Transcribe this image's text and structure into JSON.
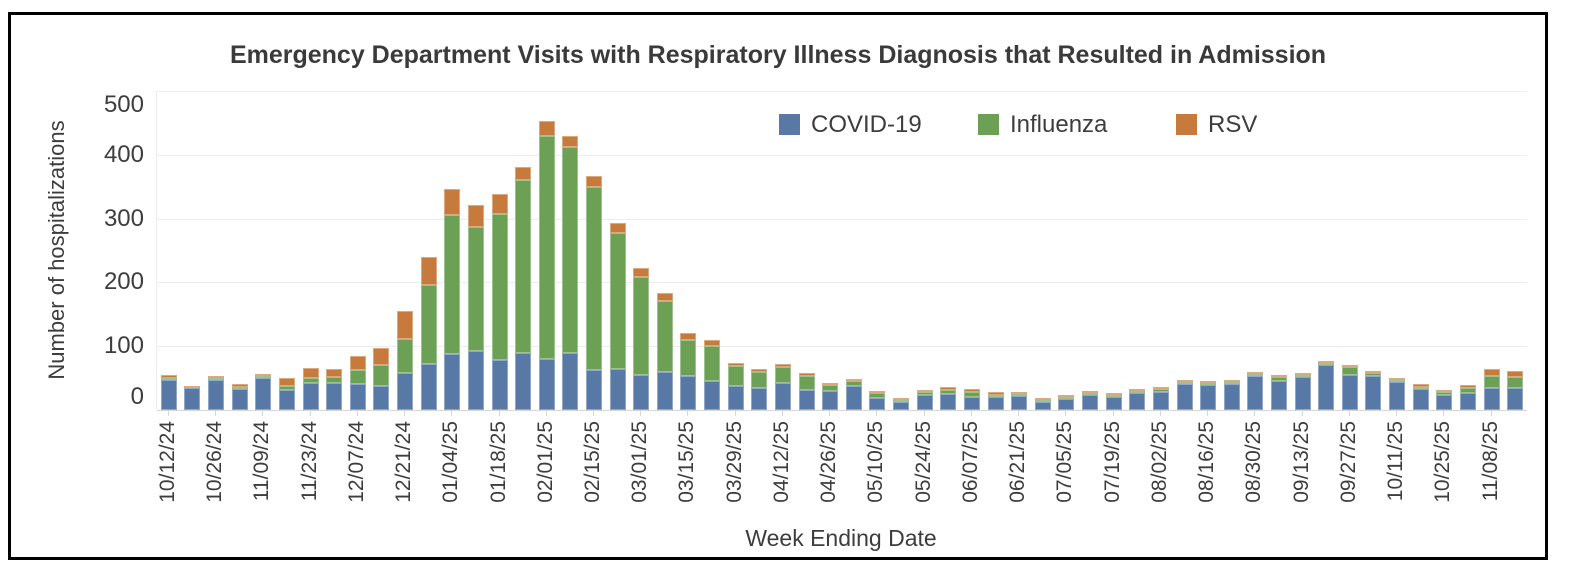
{
  "title": "Emergency Department Visits with Respiratory Illness Diagnosis that Resulted in Admission",
  "y_axis": {
    "title": "Number of hospitalizations"
  },
  "x_axis": {
    "title": "Week Ending Date",
    "label_every": 2
  },
  "colors": {
    "covid": "#5878A6",
    "influenza": "#6BA055",
    "rsv": "#C67B3C",
    "gridline": "#ECECEC",
    "axis_line": "#D7D7D7",
    "text": "#3D3D3D",
    "frame_border": "#000000",
    "background": "#FFFFFF"
  },
  "chart_data": {
    "type": "bar",
    "stacked": true,
    "title": "Emergency Department Visits with Respiratory Illness Diagnosis that Resulted in Admission",
    "xlabel": "Week Ending Date",
    "ylabel": "Number of hospitalizations",
    "ylim": [
      0,
      500
    ],
    "y_ticks": [
      0,
      100,
      200,
      300,
      400,
      500
    ],
    "grid": true,
    "legend_position": "top",
    "categories": [
      "10/12/24",
      "10/19/24",
      "10/26/24",
      "11/02/24",
      "11/09/24",
      "11/16/24",
      "11/23/24",
      "11/30/24",
      "12/07/24",
      "12/14/24",
      "12/21/24",
      "12/28/24",
      "01/04/25",
      "01/11/25",
      "01/18/25",
      "01/25/25",
      "02/01/25",
      "02/08/25",
      "02/15/25",
      "02/22/25",
      "03/01/25",
      "03/08/25",
      "03/15/25",
      "03/22/25",
      "03/29/25",
      "04/05/25",
      "04/12/25",
      "04/19/25",
      "04/26/25",
      "05/03/25",
      "05/10/25",
      "05/17/25",
      "05/24/25",
      "05/31/25",
      "06/07/25",
      "06/14/25",
      "06/21/25",
      "06/28/25",
      "07/05/25",
      "07/12/25",
      "07/19/25",
      "07/26/25",
      "08/02/25",
      "08/09/25",
      "08/16/25",
      "08/23/25",
      "08/30/25",
      "09/06/25",
      "09/13/25",
      "09/20/25",
      "09/27/25",
      "10/04/25",
      "10/11/25",
      "10/18/25",
      "10/25/25",
      "11/01/25",
      "11/08/25",
      "11/15/25"
    ],
    "visible_tick_labels": [
      "10/12/24",
      "10/26/24",
      "11/09/24",
      "11/23/24",
      "12/07/24",
      "12/21/24",
      "01/04/25",
      "01/18/25",
      "02/01/25",
      "02/15/25",
      "03/01/25",
      "03/15/25",
      "03/29/25",
      "04/12/25",
      "04/26/25",
      "05/10/25",
      "05/24/25",
      "06/07/25",
      "06/21/25",
      "07/05/25",
      "07/19/25",
      "08/02/25",
      "08/16/25",
      "08/30/25",
      "09/13/25",
      "09/27/25",
      "10/11/25",
      "10/25/25",
      "11/08/25"
    ],
    "series": [
      {
        "name": "COVID-19",
        "color": "#5878A6",
        "values": [
          47,
          35,
          47,
          33,
          50,
          32,
          43,
          42,
          40,
          38,
          58,
          72,
          88,
          92,
          79,
          90,
          80,
          90,
          62,
          64,
          55,
          60,
          53,
          46,
          38,
          35,
          43,
          32,
          30,
          37,
          19,
          13,
          23,
          25,
          21,
          20,
          22,
          13,
          17,
          23,
          21,
          27,
          29,
          40,
          39,
          40,
          54,
          46,
          52,
          70,
          55,
          54,
          44,
          33,
          24,
          26,
          34,
          35
        ]
      },
      {
        "name": "Influenza",
        "color": "#6BA055",
        "values": [
          1,
          0,
          3,
          1,
          3,
          6,
          7,
          10,
          22,
          33,
          54,
          124,
          217,
          195,
          229,
          270,
          350,
          322,
          288,
          214,
          154,
          111,
          57,
          54,
          31,
          24,
          24,
          22,
          9,
          8,
          7,
          1,
          5,
          6,
          8,
          4,
          3,
          1,
          3,
          2,
          1,
          2,
          4,
          1,
          3,
          1,
          2,
          5,
          2,
          4,
          12,
          4,
          1,
          2,
          4,
          8,
          20,
          17
        ]
      },
      {
        "name": "RSV",
        "color": "#C67B3C",
        "values": [
          4,
          3,
          3,
          5,
          4,
          13,
          16,
          13,
          23,
          27,
          43,
          44,
          42,
          35,
          30,
          21,
          23,
          17,
          17,
          15,
          14,
          12,
          10,
          10,
          5,
          5,
          5,
          4,
          4,
          4,
          3,
          1,
          4,
          5,
          4,
          4,
          3,
          2,
          3,
          3,
          3,
          3,
          3,
          3,
          3,
          3,
          3,
          3,
          3,
          3,
          4,
          3,
          3,
          4,
          3,
          5,
          10,
          9
        ]
      }
    ]
  }
}
